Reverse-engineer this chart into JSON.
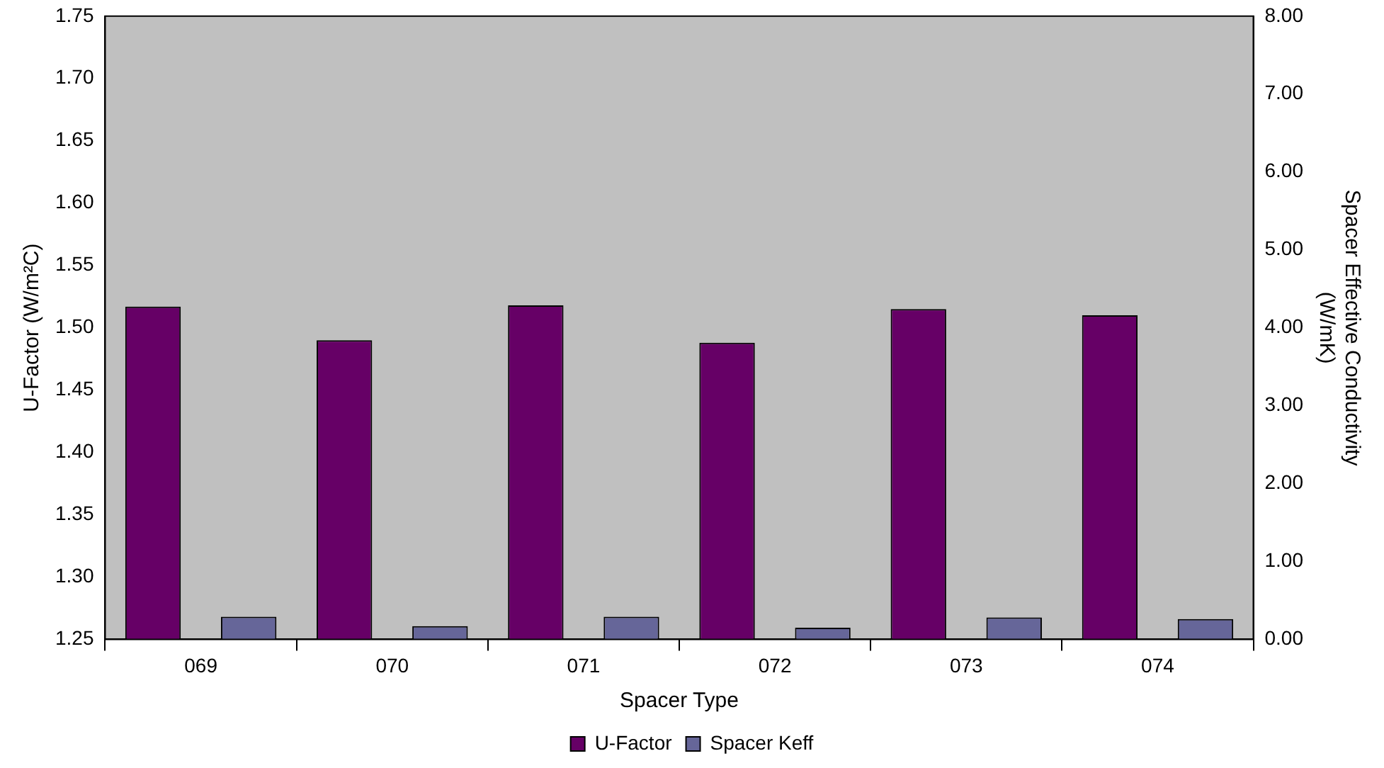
{
  "chart_data": {
    "type": "bar",
    "xlabel": "Spacer Type",
    "ylabel": "U-Factor (W/m²C)",
    "y2label": "Spacer Effective Conductivity\n(W/mK)",
    "categories": [
      "069",
      "070",
      "071",
      "072",
      "073",
      "074"
    ],
    "series": [
      {
        "name": "U-Factor",
        "color": "#660066",
        "values": [
          1.517,
          1.49,
          1.518,
          1.488,
          1.515,
          1.51
        ]
      },
      {
        "name": "Spacer Keff",
        "color": "#666699",
        "axis": "y2",
        "values": [
          0.29,
          0.17,
          0.29,
          0.15,
          0.28,
          0.26
        ]
      }
    ],
    "ylim": [
      1.25,
      1.75
    ],
    "yticks": [
      {
        "value": 1.25,
        "label": "1.25"
      },
      {
        "value": 1.3,
        "label": "1.30"
      },
      {
        "value": 1.35,
        "label": "1.35"
      },
      {
        "value": 1.4,
        "label": "1.40"
      },
      {
        "value": 1.45,
        "label": "1.45"
      },
      {
        "value": 1.5,
        "label": "1.50"
      },
      {
        "value": 1.55,
        "label": "1.55"
      },
      {
        "value": 1.6,
        "label": "1.60"
      },
      {
        "value": 1.65,
        "label": "1.65"
      },
      {
        "value": 1.7,
        "label": "1.70"
      },
      {
        "value": 1.75,
        "label": "1.75"
      }
    ],
    "y2lim": [
      0,
      8
    ],
    "y2ticks": [
      {
        "value": 0,
        "label": "0.00"
      },
      {
        "value": 1,
        "label": "1.00"
      },
      {
        "value": 2,
        "label": "2.00"
      },
      {
        "value": 3,
        "label": "3.00"
      },
      {
        "value": 4,
        "label": "4.00"
      },
      {
        "value": 5,
        "label": "5.00"
      },
      {
        "value": 6,
        "label": "6.00"
      },
      {
        "value": 7,
        "label": "7.00"
      },
      {
        "value": 8,
        "label": "8.00"
      }
    ],
    "grid": false,
    "legend": "bottom"
  }
}
